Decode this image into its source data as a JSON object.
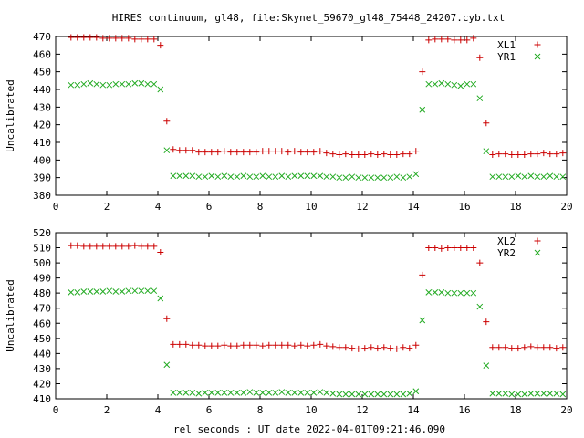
{
  "title": "HIRES continuum, gl48, file:Skynet_59670_gl48_75448_24207.cyb.txt",
  "colors": {
    "red_series": "#cc0000",
    "green_series": "#22aa22"
  },
  "chart_data": [
    {
      "type": "scatter",
      "xlabel": "",
      "ylabel": "Uncalibrated",
      "xlim": [
        0,
        20
      ],
      "ylim": [
        380,
        470
      ],
      "xticks": [
        0,
        2,
        4,
        6,
        8,
        10,
        12,
        14,
        16,
        18,
        20
      ],
      "yticks": [
        380,
        390,
        400,
        410,
        420,
        430,
        440,
        450,
        460,
        470
      ],
      "legend_position": "top-right",
      "series": [
        {
          "name": "XL1",
          "marker": "plus",
          "color": "#cc0000",
          "x": [
            0.6,
            0.85,
            1.1,
            1.35,
            1.6,
            1.85,
            2.1,
            2.35,
            2.6,
            2.85,
            3.1,
            3.35,
            3.6,
            3.85,
            4.1,
            4.35,
            4.6,
            4.85,
            5.1,
            5.35,
            5.6,
            5.85,
            6.1,
            6.35,
            6.6,
            6.85,
            7.1,
            7.35,
            7.6,
            7.85,
            8.1,
            8.35,
            8.6,
            8.85,
            9.1,
            9.35,
            9.6,
            9.85,
            10.1,
            10.35,
            10.6,
            10.85,
            11.1,
            11.35,
            11.6,
            11.85,
            12.1,
            12.35,
            12.6,
            12.85,
            13.1,
            13.35,
            13.6,
            13.85,
            14.1,
            14.35,
            14.6,
            14.85,
            15.1,
            15.35,
            15.6,
            15.85,
            16.1,
            16.35,
            16.6,
            16.85,
            17.1,
            17.35,
            17.6,
            17.85,
            18.1,
            18.35,
            18.6,
            18.85,
            19.1,
            19.35,
            19.6,
            19.85
          ],
          "y": [
            469.5,
            469.5,
            469.5,
            469.5,
            469.5,
            469,
            469,
            469,
            469,
            469,
            468.5,
            468.5,
            468.5,
            468.5,
            465,
            422,
            406,
            405.5,
            405.5,
            405.5,
            404.5,
            404.5,
            404.5,
            404.5,
            405,
            404.5,
            404.5,
            404.5,
            404.5,
            404.5,
            405,
            405,
            405,
            405,
            404.5,
            405,
            404.5,
            404.5,
            404.5,
            405,
            404,
            403.5,
            403,
            403.5,
            403,
            403,
            403,
            403.5,
            403,
            403.5,
            403,
            403,
            403.5,
            403.5,
            405,
            450,
            468,
            468.5,
            468.5,
            468.5,
            468,
            468,
            468,
            469,
            458,
            421,
            403,
            403.5,
            403.5,
            403,
            403,
            403,
            403.5,
            403.5,
            404,
            403.5,
            403.5,
            404
          ]
        },
        {
          "name": "YR1",
          "marker": "x",
          "color": "#22aa22",
          "x": [
            0.6,
            0.85,
            1.1,
            1.35,
            1.6,
            1.85,
            2.1,
            2.35,
            2.6,
            2.85,
            3.1,
            3.35,
            3.6,
            3.85,
            4.1,
            4.35,
            4.6,
            4.85,
            5.1,
            5.35,
            5.6,
            5.85,
            6.1,
            6.35,
            6.6,
            6.85,
            7.1,
            7.35,
            7.6,
            7.85,
            8.1,
            8.35,
            8.6,
            8.85,
            9.1,
            9.35,
            9.6,
            9.85,
            10.1,
            10.35,
            10.6,
            10.85,
            11.1,
            11.35,
            11.6,
            11.85,
            12.1,
            12.35,
            12.6,
            12.85,
            13.1,
            13.35,
            13.6,
            13.85,
            14.1,
            14.35,
            14.6,
            14.85,
            15.1,
            15.35,
            15.6,
            15.85,
            16.1,
            16.35,
            16.6,
            16.85,
            17.1,
            17.35,
            17.6,
            17.85,
            18.1,
            18.35,
            18.6,
            18.85,
            19.1,
            19.35,
            19.6,
            19.85
          ],
          "y": [
            442.5,
            442.5,
            443,
            443.5,
            443,
            442.5,
            442.5,
            443,
            443,
            443,
            443.5,
            443.5,
            443,
            443,
            440,
            405.5,
            391,
            391,
            391,
            391,
            390.5,
            390.5,
            391,
            390.5,
            391,
            390.5,
            390.5,
            391,
            390.5,
            390.5,
            391,
            390.5,
            390.5,
            391,
            390.5,
            391,
            391,
            391,
            391,
            391,
            390.5,
            390.5,
            390,
            390,
            390.5,
            390,
            390,
            390,
            390,
            390,
            390,
            390.5,
            390,
            390.5,
            392,
            428.5,
            443,
            443,
            443.5,
            443,
            442.5,
            442,
            443,
            443,
            435,
            405,
            390.5,
            390.5,
            390.5,
            390.5,
            391,
            390.5,
            391,
            390.5,
            390.5,
            391,
            390.5,
            390.5
          ]
        }
      ]
    },
    {
      "type": "scatter",
      "xlabel": "rel seconds : UT date 2022-04-01T09:21:46.090",
      "ylabel": "Uncalibrated",
      "xlim": [
        0,
        20
      ],
      "ylim": [
        410,
        520
      ],
      "xticks": [
        0,
        2,
        4,
        6,
        8,
        10,
        12,
        14,
        16,
        18,
        20
      ],
      "yticks": [
        410,
        420,
        430,
        440,
        450,
        460,
        470,
        480,
        490,
        500,
        510,
        520
      ],
      "legend_position": "top-right",
      "series": [
        {
          "name": "XL2",
          "marker": "plus",
          "color": "#cc0000",
          "x": [
            0.6,
            0.85,
            1.1,
            1.35,
            1.6,
            1.85,
            2.1,
            2.35,
            2.6,
            2.85,
            3.1,
            3.35,
            3.6,
            3.85,
            4.1,
            4.35,
            4.6,
            4.85,
            5.1,
            5.35,
            5.6,
            5.85,
            6.1,
            6.35,
            6.6,
            6.85,
            7.1,
            7.35,
            7.6,
            7.85,
            8.1,
            8.35,
            8.6,
            8.85,
            9.1,
            9.35,
            9.6,
            9.85,
            10.1,
            10.35,
            10.6,
            10.85,
            11.1,
            11.35,
            11.6,
            11.85,
            12.1,
            12.35,
            12.6,
            12.85,
            13.1,
            13.35,
            13.6,
            13.85,
            14.1,
            14.35,
            14.6,
            14.85,
            15.1,
            15.35,
            15.6,
            15.85,
            16.1,
            16.35,
            16.6,
            16.85,
            17.1,
            17.35,
            17.6,
            17.85,
            18.1,
            18.35,
            18.6,
            18.85,
            19.1,
            19.35,
            19.6,
            19.85
          ],
          "y": [
            511.5,
            511.5,
            511,
            511,
            511,
            511,
            511,
            511,
            511,
            511,
            511.5,
            511,
            511,
            511,
            507,
            463,
            446,
            446,
            446,
            445.5,
            445.5,
            445,
            445,
            445,
            445.5,
            445,
            445,
            445.5,
            445.5,
            445.5,
            445,
            445.5,
            445.5,
            445.5,
            445.5,
            445,
            445.5,
            445,
            445.5,
            446,
            445,
            444.5,
            444,
            444,
            443.5,
            443,
            443.5,
            444,
            443.5,
            444,
            443.5,
            443,
            444,
            443.5,
            445.5,
            492,
            510,
            510,
            509.5,
            510,
            510,
            510,
            510,
            510,
            500,
            461,
            444,
            444,
            444,
            443.5,
            443.5,
            444,
            444.5,
            444,
            444,
            444,
            443.5,
            444
          ]
        },
        {
          "name": "YR2",
          "marker": "x",
          "color": "#22aa22",
          "x": [
            0.6,
            0.85,
            1.1,
            1.35,
            1.6,
            1.85,
            2.1,
            2.35,
            2.6,
            2.85,
            3.1,
            3.35,
            3.6,
            3.85,
            4.1,
            4.35,
            4.6,
            4.85,
            5.1,
            5.35,
            5.6,
            5.85,
            6.1,
            6.35,
            6.6,
            6.85,
            7.1,
            7.35,
            7.6,
            7.85,
            8.1,
            8.35,
            8.6,
            8.85,
            9.1,
            9.35,
            9.6,
            9.85,
            10.1,
            10.35,
            10.6,
            10.85,
            11.1,
            11.35,
            11.6,
            11.85,
            12.1,
            12.35,
            12.6,
            12.85,
            13.1,
            13.35,
            13.6,
            13.85,
            14.1,
            14.35,
            14.6,
            14.85,
            15.1,
            15.35,
            15.6,
            15.85,
            16.1,
            16.35,
            16.6,
            16.85,
            17.1,
            17.35,
            17.6,
            17.85,
            18.1,
            18.35,
            18.6,
            18.85,
            19.1,
            19.35,
            19.6,
            19.85
          ],
          "y": [
            480.5,
            480.5,
            481,
            481,
            481,
            481,
            481.5,
            481,
            481,
            481.5,
            481.5,
            481.5,
            481.5,
            481.5,
            476.5,
            432.5,
            414,
            414,
            414,
            414,
            413.5,
            414,
            414,
            414,
            414,
            414,
            414,
            414,
            414.5,
            414,
            414,
            414,
            414,
            414.5,
            414,
            414,
            414,
            414,
            414,
            414.5,
            414,
            413.5,
            413,
            413,
            413,
            413,
            413,
            413,
            413,
            413,
            413,
            413,
            413,
            413.5,
            415,
            462,
            480.5,
            480.5,
            480.5,
            480,
            480,
            480,
            480,
            480,
            471,
            432,
            413.5,
            413.5,
            413.5,
            413,
            413,
            413,
            413.5,
            413.5,
            413.5,
            413.5,
            413.5,
            413
          ]
        }
      ]
    }
  ]
}
